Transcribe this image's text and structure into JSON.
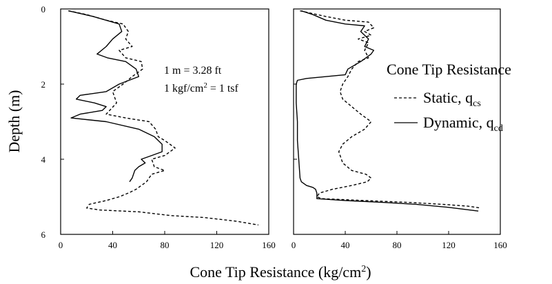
{
  "chart_data": {
    "type": "line",
    "xlabel_main": "Cone Tip Resistance (kg/cm",
    "xlabel_sup": "2",
    "xlabel_close": ")",
    "ylabel": "Depth (m)",
    "xlim": [
      0,
      160
    ],
    "ylim": [
      0,
      6
    ],
    "y_inverted": true,
    "x_ticks": [
      "0",
      "40",
      "80",
      "120",
      "160"
    ],
    "y_ticks": [
      "0",
      "2",
      "4",
      "6"
    ],
    "notes": {
      "conversion_1": "1 m = 3.28 ft",
      "conversion_2_a": "1 kgf/cm",
      "conversion_2_sup": "2",
      "conversion_2_b": " = 1 tsf"
    },
    "legend": {
      "title": "Cone Tip Resistance",
      "static_label": "Static, q",
      "static_sub": "cs",
      "dynamic_label": "Dynamic, q",
      "dynamic_sub": "cd"
    },
    "panels": [
      {
        "series": [
          {
            "name": "Static",
            "style": "dashed",
            "points": [
              [
                6,
                0.05
              ],
              [
                20,
                0.15
              ],
              [
                35,
                0.3
              ],
              [
                48,
                0.4
              ],
              [
                52,
                0.6
              ],
              [
                50,
                0.8
              ],
              [
                55,
                1.0
              ],
              [
                45,
                1.1
              ],
              [
                50,
                1.3
              ],
              [
                62,
                1.4
              ],
              [
                63,
                1.6
              ],
              [
                55,
                1.8
              ],
              [
                48,
                2.0
              ],
              [
                40,
                2.2
              ],
              [
                43,
                2.5
              ],
              [
                35,
                2.8
              ],
              [
                50,
                2.9
              ],
              [
                68,
                3.0
              ],
              [
                73,
                3.2
              ],
              [
                75,
                3.4
              ],
              [
                80,
                3.5
              ],
              [
                88,
                3.7
              ],
              [
                80,
                3.9
              ],
              [
                70,
                4.0
              ],
              [
                72,
                4.2
              ],
              [
                80,
                4.3
              ],
              [
                70,
                4.4
              ],
              [
                66,
                4.6
              ],
              [
                58,
                4.8
              ],
              [
                52,
                4.9
              ],
              [
                45,
                5.0
              ],
              [
                35,
                5.1
              ],
              [
                22,
                5.2
              ],
              [
                20,
                5.3
              ],
              [
                30,
                5.35
              ],
              [
                60,
                5.4
              ],
              [
                85,
                5.5
              ],
              [
                110,
                5.55
              ],
              [
                135,
                5.65
              ],
              [
                152,
                5.75
              ]
            ]
          },
          {
            "name": "Dynamic",
            "style": "solid",
            "points": [
              [
                6,
                0.05
              ],
              [
                25,
                0.2
              ],
              [
                45,
                0.4
              ],
              [
                47,
                0.6
              ],
              [
                40,
                0.8
              ],
              [
                35,
                1.0
              ],
              [
                28,
                1.2
              ],
              [
                36,
                1.3
              ],
              [
                50,
                1.4
              ],
              [
                58,
                1.6
              ],
              [
                60,
                1.8
              ],
              [
                45,
                2.0
              ],
              [
                35,
                2.2
              ],
              [
                15,
                2.3
              ],
              [
                12,
                2.4
              ],
              [
                26,
                2.5
              ],
              [
                35,
                2.6
              ],
              [
                32,
                2.7
              ],
              [
                15,
                2.8
              ],
              [
                8,
                2.9
              ],
              [
                35,
                3.0
              ],
              [
                60,
                3.2
              ],
              [
                72,
                3.4
              ],
              [
                78,
                3.6
              ],
              [
                78,
                3.8
              ],
              [
                70,
                3.9
              ],
              [
                62,
                4.0
              ],
              [
                65,
                4.1
              ],
              [
                60,
                4.2
              ],
              [
                57,
                4.3
              ],
              [
                55,
                4.5
              ],
              [
                53,
                4.6
              ]
            ]
          }
        ]
      },
      {
        "series": [
          {
            "name": "Static",
            "style": "dashed",
            "points": [
              [
                5,
                0.05
              ],
              [
                25,
                0.2
              ],
              [
                40,
                0.3
              ],
              [
                58,
                0.35
              ],
              [
                62,
                0.5
              ],
              [
                55,
                0.6
              ],
              [
                60,
                0.7
              ],
              [
                50,
                0.8
              ],
              [
                58,
                0.9
              ],
              [
                55,
                1.1
              ],
              [
                58,
                1.3
              ],
              [
                50,
                1.4
              ],
              [
                45,
                1.6
              ],
              [
                42,
                1.8
              ],
              [
                38,
                2.0
              ],
              [
                36,
                2.2
              ],
              [
                38,
                2.4
              ],
              [
                45,
                2.6
              ],
              [
                52,
                2.8
              ],
              [
                60,
                3.0
              ],
              [
                55,
                3.2
              ],
              [
                45,
                3.4
              ],
              [
                38,
                3.6
              ],
              [
                35,
                3.8
              ],
              [
                38,
                4.1
              ],
              [
                45,
                4.3
              ],
              [
                56,
                4.4
              ],
              [
                60,
                4.5
              ],
              [
                57,
                4.6
              ],
              [
                45,
                4.7
              ],
              [
                30,
                4.8
              ],
              [
                20,
                4.9
              ],
              [
                18,
                5.0
              ],
              [
                22,
                5.05
              ],
              [
                55,
                5.1
              ],
              [
                90,
                5.15
              ],
              [
                115,
                5.2
              ],
              [
                135,
                5.25
              ],
              [
                145,
                5.3
              ]
            ]
          },
          {
            "name": "Dynamic",
            "style": "solid",
            "points": [
              [
                6,
                0.05
              ],
              [
                15,
                0.15
              ],
              [
                25,
                0.3
              ],
              [
                40,
                0.4
              ],
              [
                55,
                0.45
              ],
              [
                52,
                0.6
              ],
              [
                58,
                0.8
              ],
              [
                55,
                1.0
              ],
              [
                62,
                1.1
              ],
              [
                60,
                1.2
              ],
              [
                52,
                1.4
              ],
              [
                42,
                1.6
              ],
              [
                40,
                1.75
              ],
              [
                10,
                1.85
              ],
              [
                3,
                1.9
              ],
              [
                2,
                2.0
              ],
              [
                2,
                2.5
              ],
              [
                3,
                3.0
              ],
              [
                3,
                3.5
              ],
              [
                4,
                4.0
              ],
              [
                5,
                4.5
              ],
              [
                6,
                4.6
              ],
              [
                10,
                4.7
              ],
              [
                15,
                4.75
              ],
              [
                17,
                4.8
              ],
              [
                18,
                4.9
              ],
              [
                18,
                5.05
              ],
              [
                40,
                5.1
              ],
              [
                70,
                5.15
              ],
              [
                95,
                5.2
              ],
              [
                120,
                5.28
              ],
              [
                143,
                5.38
              ]
            ]
          }
        ]
      }
    ]
  }
}
